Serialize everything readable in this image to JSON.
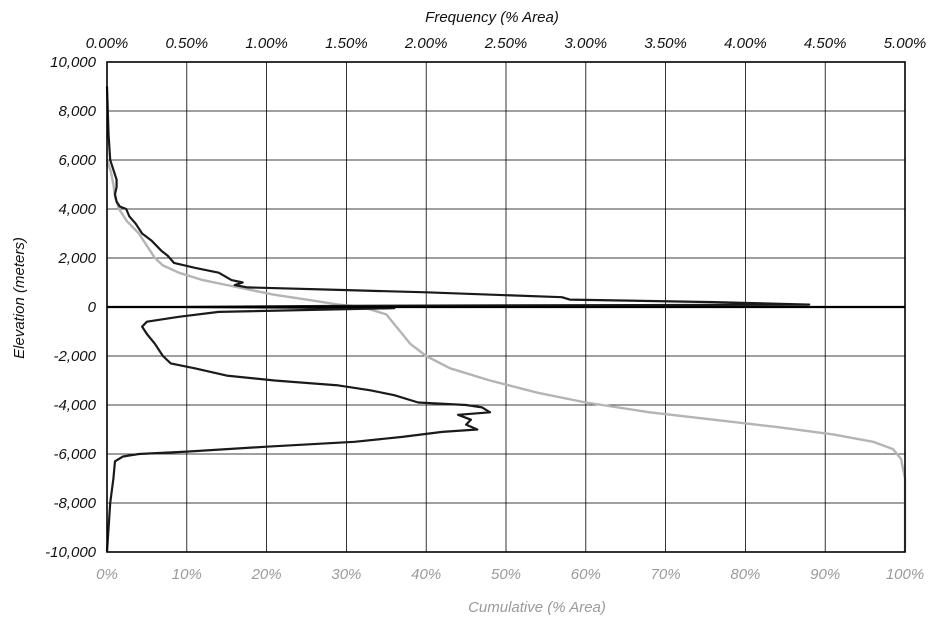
{
  "chart_data": {
    "type": "line",
    "title": "",
    "x_top_label": "Frequency (% Area)",
    "x_bottom_label": "Cumulative (% Area)",
    "ylabel": "Elevation (meters)",
    "x_top_ticks": [
      "0.00%",
      "0.50%",
      "1.00%",
      "1.50%",
      "2.00%",
      "2.50%",
      "3.00%",
      "3.50%",
      "4.00%",
      "4.50%",
      "5.00%"
    ],
    "x_bottom_ticks": [
      "0%",
      "10%",
      "20%",
      "30%",
      "40%",
      "50%",
      "60%",
      "70%",
      "80%",
      "90%",
      "100%"
    ],
    "y_ticks": [
      "10,000",
      "8,000",
      "6,000",
      "4,000",
      "2,000",
      "0",
      "-2,000",
      "-4,000",
      "-6,000",
      "-8,000",
      "-10,000"
    ],
    "x_top_range": [
      0,
      5
    ],
    "x_bottom_range": [
      0,
      100
    ],
    "y_range": [
      -10000,
      10000
    ],
    "grid": true,
    "series": [
      {
        "axis": "top",
        "color": "#1a1a1a",
        "points": [
          [
            0.0,
            9000
          ],
          [
            0.01,
            7000
          ],
          [
            0.02,
            6000
          ],
          [
            0.04,
            5600
          ],
          [
            0.06,
            5200
          ],
          [
            0.06,
            4900
          ],
          [
            0.05,
            4600
          ],
          [
            0.06,
            4300
          ],
          [
            0.08,
            4100
          ],
          [
            0.12,
            4000
          ],
          [
            0.14,
            3700
          ],
          [
            0.18,
            3400
          ],
          [
            0.22,
            3000
          ],
          [
            0.28,
            2700
          ],
          [
            0.34,
            2300
          ],
          [
            0.38,
            2100
          ],
          [
            0.42,
            1800
          ],
          [
            0.55,
            1600
          ],
          [
            0.7,
            1400
          ],
          [
            0.78,
            1100
          ],
          [
            0.85,
            1000
          ],
          [
            0.8,
            900
          ],
          [
            0.88,
            800
          ],
          [
            1.45,
            700
          ],
          [
            2.0,
            600
          ],
          [
            2.85,
            400
          ],
          [
            2.9,
            300
          ],
          [
            3.8,
            200
          ],
          [
            4.4,
            100
          ],
          [
            1.5,
            50
          ],
          [
            0.5,
            0
          ],
          [
            1.8,
            -50
          ],
          [
            0.7,
            -200
          ],
          [
            0.45,
            -400
          ],
          [
            0.25,
            -600
          ],
          [
            0.22,
            -800
          ],
          [
            0.25,
            -1100
          ],
          [
            0.3,
            -1500
          ],
          [
            0.35,
            -2000
          ],
          [
            0.4,
            -2300
          ],
          [
            0.55,
            -2500
          ],
          [
            0.75,
            -2800
          ],
          [
            1.05,
            -3000
          ],
          [
            1.45,
            -3200
          ],
          [
            1.65,
            -3400
          ],
          [
            1.8,
            -3600
          ],
          [
            1.95,
            -3900
          ],
          [
            2.25,
            -4000
          ],
          [
            2.35,
            -4100
          ],
          [
            2.4,
            -4300
          ],
          [
            2.2,
            -4400
          ],
          [
            2.28,
            -4600
          ],
          [
            2.25,
            -4800
          ],
          [
            2.32,
            -5000
          ],
          [
            2.1,
            -5100
          ],
          [
            1.85,
            -5300
          ],
          [
            1.55,
            -5500
          ],
          [
            1.0,
            -5700
          ],
          [
            0.5,
            -5900
          ],
          [
            0.2,
            -6000
          ],
          [
            0.1,
            -6100
          ],
          [
            0.05,
            -6300
          ],
          [
            0.04,
            -7000
          ],
          [
            0.02,
            -8000
          ],
          [
            0.0,
            -10000
          ]
        ]
      },
      {
        "axis": "bottom",
        "color": "#b4b4b4",
        "points": [
          [
            0,
            6000
          ],
          [
            0.5,
            5500
          ],
          [
            0.8,
            5000
          ],
          [
            1.0,
            4500
          ],
          [
            1.5,
            4000
          ],
          [
            2.5,
            3500
          ],
          [
            4,
            3000
          ],
          [
            5,
            2500
          ],
          [
            6,
            2000
          ],
          [
            7,
            1700
          ],
          [
            9,
            1400
          ],
          [
            12,
            1100
          ],
          [
            15,
            900
          ],
          [
            18,
            700
          ],
          [
            21,
            500
          ],
          [
            25,
            300
          ],
          [
            29,
            100
          ],
          [
            32,
            0
          ],
          [
            35,
            -300
          ],
          [
            36,
            -700
          ],
          [
            37,
            -1100
          ],
          [
            38,
            -1500
          ],
          [
            40,
            -2000
          ],
          [
            43,
            -2500
          ],
          [
            48,
            -3000
          ],
          [
            54,
            -3500
          ],
          [
            60,
            -3900
          ],
          [
            68,
            -4300
          ],
          [
            76,
            -4600
          ],
          [
            84,
            -4900
          ],
          [
            91,
            -5200
          ],
          [
            96,
            -5500
          ],
          [
            98.5,
            -5800
          ],
          [
            99.5,
            -6200
          ],
          [
            100,
            -7000
          ],
          [
            100,
            -10000
          ]
        ]
      }
    ]
  }
}
